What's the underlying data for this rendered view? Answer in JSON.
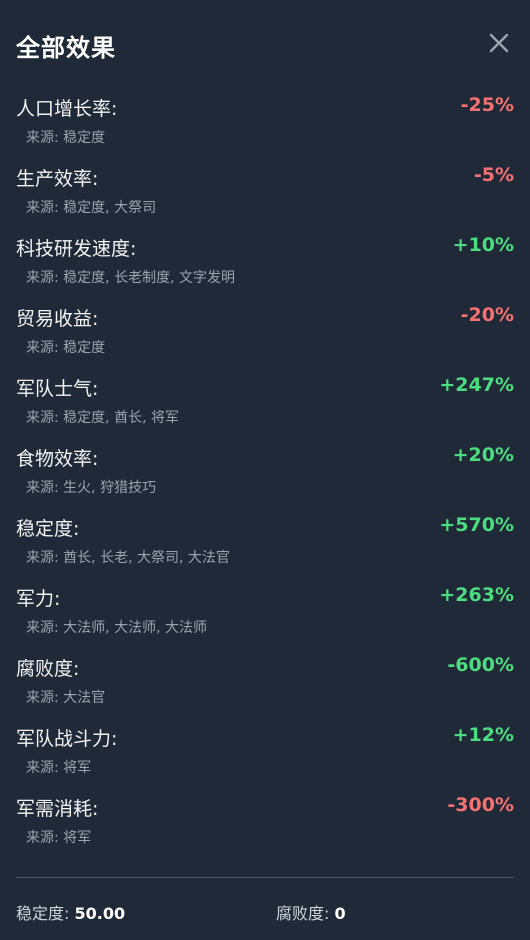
{
  "header": {
    "title": "全部效果",
    "close_icon": "close-icon"
  },
  "effects": [
    {
      "name": "人口增长率:",
      "value": "-25%",
      "trend": "negative",
      "source": "来源: 稳定度"
    },
    {
      "name": "生产效率:",
      "value": "-5%",
      "trend": "negative",
      "source": "来源: 稳定度, 大祭司"
    },
    {
      "name": "科技研发速度:",
      "value": "+10%",
      "trend": "positive",
      "source": "来源: 稳定度, 长老制度, 文字发明"
    },
    {
      "name": "贸易收益:",
      "value": "-20%",
      "trend": "negative",
      "source": "来源: 稳定度"
    },
    {
      "name": "军队士气:",
      "value": "+247%",
      "trend": "positive",
      "source": "来源: 稳定度, 酋长, 将军"
    },
    {
      "name": "食物效率:",
      "value": "+20%",
      "trend": "positive",
      "source": "来源: 生火, 狩猎技巧"
    },
    {
      "name": "稳定度:",
      "value": "+570%",
      "trend": "positive",
      "source": "来源: 酋长, 长老, 大祭司, 大法官"
    },
    {
      "name": "军力:",
      "value": "+263%",
      "trend": "positive",
      "source": "来源: 大法师, 大法师, 大法师"
    },
    {
      "name": "腐败度:",
      "value": "-600%",
      "trend": "positive",
      "source": "来源: 大法官"
    },
    {
      "name": "军队战斗力:",
      "value": "+12%",
      "trend": "positive",
      "source": "来源: 将军"
    },
    {
      "name": "军需消耗:",
      "value": "-300%",
      "trend": "negative",
      "source": "来源: 将军"
    }
  ],
  "footer": {
    "stability_label": "稳定度:",
    "stability_value": "50.00",
    "corruption_label": "腐败度:",
    "corruption_value": "0"
  },
  "colors": {
    "background": "#1f2937",
    "negative": "#f87171",
    "positive": "#4ade80",
    "muted": "#9ca3af"
  }
}
